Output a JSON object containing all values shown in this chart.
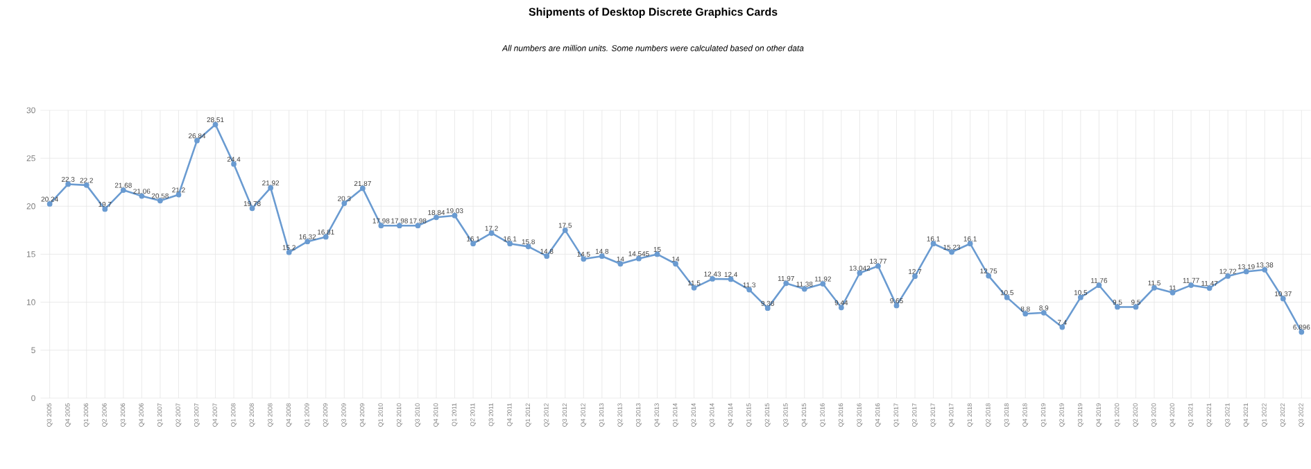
{
  "chart_data": {
    "type": "line",
    "title": "Shipments of Desktop Discrete Graphics Cards",
    "annotations": [
      "All numbers are million units. Some numbers were calculated based on other data"
    ],
    "categories": [
      "Q3 2005",
      "Q4 2005",
      "Q1 2006",
      "Q2 2006",
      "Q3 2006",
      "Q4 2006",
      "Q1 2007",
      "Q2 2007",
      "Q3 2007",
      "Q4 2007",
      "Q1 2008",
      "Q2 2008",
      "Q3 2008",
      "Q4 2008",
      "Q1 2009",
      "Q2 2009",
      "Q3 2009",
      "Q4 2009",
      "Q1 2010",
      "Q2 2010",
      "Q3 2010",
      "Q4 2010",
      "Q1 2011",
      "Q2 2011",
      "Q3 2011",
      "Q4 2011",
      "Q1 2012",
      "Q2 2012",
      "Q3 2012",
      "Q4 2012",
      "Q1 2013",
      "Q2 2013",
      "Q3 2013",
      "Q4 2013",
      "Q1 2014",
      "Q2 2014",
      "Q3 2014",
      "Q4 2014",
      "Q1 2015",
      "Q2 2015",
      "Q3 2015",
      "Q4 2015",
      "Q1 2016",
      "Q2 2016",
      "Q3 2016",
      "Q4 2016",
      "Q1 2017",
      "Q2 2017",
      "Q3 2017",
      "Q4 2017",
      "Q1 2018",
      "Q2 2018",
      "Q3 2018",
      "Q4 2018",
      "Q1 2019",
      "Q2 2019",
      "Q3 2019",
      "Q4 2019",
      "Q1 2020",
      "Q2 2020",
      "Q3 2020",
      "Q4 2020",
      "Q1 2021",
      "Q2 2021",
      "Q3 2021",
      "Q4 2021",
      "Q1 2022",
      "Q2 2022",
      "Q3 2022"
    ],
    "values": [
      20.24,
      22.3,
      22.2,
      19.7,
      21.68,
      21.06,
      20.58,
      21.2,
      26.84,
      28.51,
      24.4,
      19.78,
      21.92,
      15.2,
      16.32,
      16.81,
      20.3,
      21.87,
      17.98,
      17.98,
      17.98,
      18.84,
      19.03,
      16.1,
      17.2,
      16.1,
      15.8,
      14.8,
      17.5,
      14.5,
      14.8,
      14,
      14.545,
      15,
      14,
      11.5,
      12.43,
      12.4,
      11.3,
      9.38,
      11.97,
      11.38,
      11.92,
      9.44,
      13.042,
      13.77,
      9.65,
      12.7,
      16.1,
      15.23,
      16.1,
      12.75,
      10.5,
      8.8,
      8.9,
      7.4,
      10.5,
      11.76,
      9.5,
      9.5,
      11.5,
      11,
      11.77,
      11.47,
      12.72,
      13.19,
      13.38,
      10.37,
      6.896
    ],
    "color": "#6a9bd1",
    "ylim": [
      0,
      30
    ],
    "yticks": [
      0,
      5,
      10,
      15,
      20,
      25,
      30
    ],
    "grid": true,
    "marker": "circle",
    "line_style": "solid",
    "data_labels": true
  }
}
